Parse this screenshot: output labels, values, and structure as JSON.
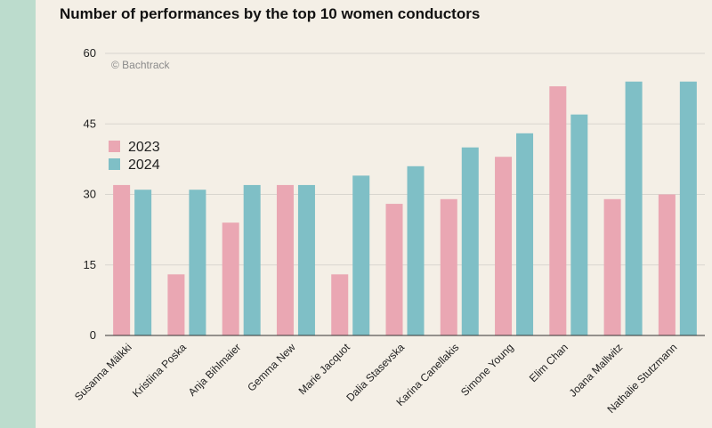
{
  "colors": {
    "series_2023": "#eaa7b3",
    "series_2024": "#7fbfc6",
    "grid": "#d9d6cf",
    "axis": "#333333",
    "background": "#f4efe6",
    "side_strip": "#bcdccd"
  },
  "chart_data": {
    "type": "bar",
    "title": "Number of performances by the top 10 women conductors",
    "credit": "© Bachtrack",
    "xlabel": "",
    "ylabel": "",
    "ylim": [
      0,
      60
    ],
    "yticks": [
      0,
      15,
      30,
      45,
      60
    ],
    "grid": true,
    "legend_position": "top-left",
    "categories": [
      "Susanna Mälkki",
      "Kristiina Poska",
      "Anja Bihlmaier",
      "Gemma New",
      "Marie Jacquot",
      "Dalia Stasevska",
      "Karina Canellakis",
      "Simone Young",
      "Elim Chan",
      "Joana Mallwitz",
      "Nathalie Stutzmann"
    ],
    "series": [
      {
        "name": "2023",
        "values": [
          32,
          13,
          24,
          32,
          13,
          28,
          29,
          38,
          53,
          29,
          30
        ]
      },
      {
        "name": "2024",
        "values": [
          31,
          31,
          32,
          32,
          34,
          36,
          40,
          43,
          47,
          54,
          54
        ]
      }
    ]
  }
}
